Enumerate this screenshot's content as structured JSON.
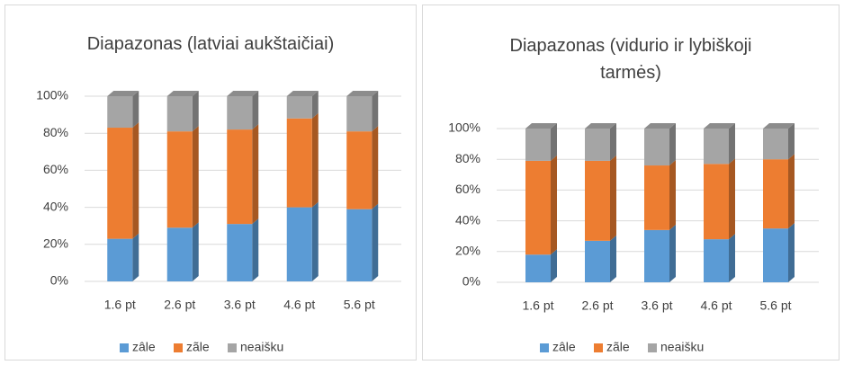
{
  "chart_data": [
    {
      "type": "bar",
      "stacked": true,
      "title": "Diapazonas (latviai aukštaičiai)",
      "categories": [
        "1.6 pt",
        "2.6 pt",
        "3.6 pt",
        "4.6 pt",
        "5.6 pt"
      ],
      "series": [
        {
          "name": "zâle",
          "color": "#5b9bd5",
          "values": [
            23,
            29,
            31,
            40,
            39
          ]
        },
        {
          "name": "zãle",
          "color": "#ed7d31",
          "values": [
            60,
            52,
            51,
            48,
            42
          ]
        },
        {
          "name": "neaišku",
          "color": "#a5a5a5",
          "values": [
            17,
            19,
            18,
            12,
            19
          ]
        }
      ],
      "ylim": [
        0,
        100
      ],
      "yticks": [
        {
          "value": 0,
          "label": "0%"
        },
        {
          "value": 20,
          "label": "20%"
        },
        {
          "value": 40,
          "label": "40%"
        },
        {
          "value": 60,
          "label": "60%"
        },
        {
          "value": 80,
          "label": "80%"
        },
        {
          "value": 100,
          "label": "100%"
        }
      ],
      "grid": true,
      "legend": "bottom"
    },
    {
      "type": "bar",
      "stacked": true,
      "title": "Diapazonas (vidurio ir lybiškoji tarmės)",
      "categories": [
        "1.6 pt",
        "2.6 pt",
        "3.6 pt",
        "4.6 pt",
        "5.6 pt"
      ],
      "series": [
        {
          "name": "zâle",
          "color": "#5b9bd5",
          "values": [
            18,
            27,
            34,
            28,
            35
          ]
        },
        {
          "name": "zãle",
          "color": "#ed7d31",
          "values": [
            61,
            52,
            42,
            49,
            45
          ]
        },
        {
          "name": "neaišku",
          "color": "#a5a5a5",
          "values": [
            21,
            21,
            24,
            23,
            20
          ]
        }
      ],
      "ylim": [
        0,
        100
      ],
      "yticks": [
        {
          "value": 0,
          "label": "0%"
        },
        {
          "value": 20,
          "label": "20%"
        },
        {
          "value": 40,
          "label": "40%"
        },
        {
          "value": 60,
          "label": "60%"
        },
        {
          "value": 80,
          "label": "80%"
        },
        {
          "value": 100,
          "label": "100%"
        }
      ],
      "grid": true,
      "legend": "bottom"
    }
  ]
}
